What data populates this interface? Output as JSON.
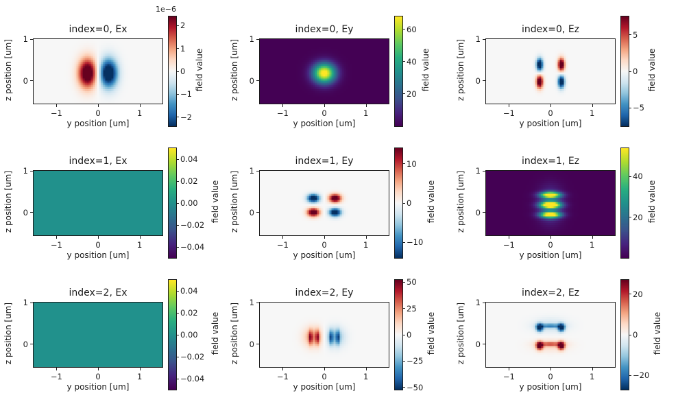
{
  "figure": {
    "background": "#ffffff",
    "text_color": "#1a1a1a",
    "xlabel": "y position [um]",
    "ylabel": "z position [um]",
    "colorbar_label": "field value"
  },
  "colormaps": {
    "viridis": [
      [
        0,
        "#440154"
      ],
      [
        0.125,
        "#46237e"
      ],
      [
        0.25,
        "#3b528b"
      ],
      [
        0.375,
        "#2c728e"
      ],
      [
        0.5,
        "#21918c"
      ],
      [
        0.625,
        "#28ae80"
      ],
      [
        0.75,
        "#5ec962"
      ],
      [
        0.875,
        "#addc30"
      ],
      [
        1,
        "#fde725"
      ]
    ],
    "RdBu_r": [
      [
        0,
        "#053061"
      ],
      [
        0.1,
        "#2166ac"
      ],
      [
        0.2,
        "#4393c3"
      ],
      [
        0.3,
        "#92c5de"
      ],
      [
        0.4,
        "#d1e5f0"
      ],
      [
        0.5,
        "#f7f7f7"
      ],
      [
        0.6,
        "#fddbc7"
      ],
      [
        0.7,
        "#f4a582"
      ],
      [
        0.8,
        "#d6604d"
      ],
      [
        0.9,
        "#b2182b"
      ],
      [
        1,
        "#67001f"
      ]
    ]
  },
  "chart_data": [
    {
      "type": "heatmap",
      "title": "index=0, Ex",
      "cmap": "RdBu_r",
      "xlabel": "y position [um]",
      "ylabel": "z position [um]",
      "colorbar_label": "field value",
      "offset_text": "1e−6",
      "xlim": [
        -1.55,
        1.55
      ],
      "ylim": [
        -0.55,
        1.0
      ],
      "xticks": [
        {
          "v": -1,
          "label": "−1"
        },
        {
          "v": 0,
          "label": "0"
        },
        {
          "v": 1,
          "label": "1"
        }
      ],
      "yticks": [
        {
          "v": 1,
          "label": "1"
        },
        {
          "v": 0,
          "label": "0"
        }
      ],
      "vmin": -2.4,
      "vmax": 2.4,
      "cticks": [
        {
          "v": 2,
          "label": "2"
        },
        {
          "v": 1,
          "label": "1"
        },
        {
          "v": 0,
          "label": "0"
        },
        {
          "v": -1,
          "label": "−1"
        },
        {
          "v": -2,
          "label": "−2"
        }
      ],
      "base": 0,
      "pattern": "horizontal dipole: positive (red) lobe left of center, negative (blue) lobe right, at z≈0.18",
      "blobs": [
        [
          -0.25,
          0.18,
          0.15,
          0.24,
          3.2
        ],
        [
          0.25,
          0.18,
          0.15,
          0.24,
          -3.2
        ]
      ]
    },
    {
      "type": "heatmap",
      "title": "index=0, Ey",
      "cmap": "viridis",
      "xlabel": "y position [um]",
      "ylabel": "z position [um]",
      "colorbar_label": "field value",
      "offset_text": null,
      "xlim": [
        -1.55,
        1.55
      ],
      "ylim": [
        -0.55,
        1.0
      ],
      "xticks": [
        {
          "v": -1,
          "label": "−1"
        },
        {
          "v": 0,
          "label": "0"
        },
        {
          "v": 1,
          "label": "1"
        }
      ],
      "yticks": [
        {
          "v": 1,
          "label": "1"
        },
        {
          "v": 0,
          "label": "0"
        }
      ],
      "vmin": 0,
      "vmax": 68,
      "cticks": [
        {
          "v": 60,
          "label": "60"
        },
        {
          "v": 40,
          "label": "40"
        },
        {
          "v": 20,
          "label": "20"
        }
      ],
      "base": 0,
      "pattern": "single bright fundamental-mode spot centered at y=0, z≈0.18",
      "blobs": [
        [
          0,
          0.18,
          0.19,
          0.17,
          72
        ]
      ]
    },
    {
      "type": "heatmap",
      "title": "index=0, Ez",
      "cmap": "RdBu_r",
      "xlabel": "y position [um]",
      "ylabel": "z position [um]",
      "colorbar_label": "field value",
      "offset_text": null,
      "xlim": [
        -1.55,
        1.55
      ],
      "ylim": [
        -0.55,
        1.0
      ],
      "xticks": [
        {
          "v": -1,
          "label": "−1"
        },
        {
          "v": 0,
          "label": "0"
        },
        {
          "v": 1,
          "label": "1"
        }
      ],
      "yticks": [
        {
          "v": 1,
          "label": "1"
        },
        {
          "v": 0,
          "label": "0"
        }
      ],
      "vmin": -7.5,
      "vmax": 7.5,
      "cticks": [
        {
          "v": 5,
          "label": "5"
        },
        {
          "v": 0,
          "label": "0"
        },
        {
          "v": -5,
          "label": "−5"
        }
      ],
      "base": 0,
      "pattern": "quadrupole of small lobes: blue top-left, red top-right, red bottom-left, blue bottom-right",
      "blobs": [
        [
          -0.26,
          0.39,
          0.055,
          0.105,
          -10
        ],
        [
          0.26,
          0.39,
          0.055,
          0.105,
          10
        ],
        [
          -0.26,
          -0.03,
          0.055,
          0.105,
          10
        ],
        [
          0.26,
          -0.03,
          0.055,
          0.105,
          -10
        ]
      ]
    },
    {
      "type": "heatmap",
      "title": "index=1, Ex",
      "cmap": "viridis",
      "xlabel": "y position [um]",
      "ylabel": "z position [um]",
      "colorbar_label": "field value",
      "offset_text": null,
      "xlim": [
        -1.55,
        1.55
      ],
      "ylim": [
        -0.55,
        1.0
      ],
      "xticks": [
        {
          "v": -1,
          "label": "−1"
        },
        {
          "v": 0,
          "label": "0"
        },
        {
          "v": 1,
          "label": "1"
        }
      ],
      "yticks": [
        {
          "v": 1,
          "label": "1"
        },
        {
          "v": 0,
          "label": "0"
        }
      ],
      "vmin": -0.05,
      "vmax": 0.05,
      "cticks": [
        {
          "v": 0.04,
          "label": "0.04"
        },
        {
          "v": 0.02,
          "label": "0.02"
        },
        {
          "v": 0,
          "label": "0.00"
        },
        {
          "v": -0.02,
          "label": "−0.02"
        },
        {
          "v": -0.04,
          "label": "−0.04"
        }
      ],
      "base": 0,
      "pattern": "uniform zero field (flat teal)",
      "blobs": []
    },
    {
      "type": "heatmap",
      "title": "index=1, Ey",
      "cmap": "RdBu_r",
      "xlabel": "y position [um]",
      "ylabel": "z position [um]",
      "colorbar_label": "field value",
      "offset_text": null,
      "xlim": [
        -1.55,
        1.55
      ],
      "ylim": [
        -0.55,
        1.0
      ],
      "xticks": [
        {
          "v": -1,
          "label": "−1"
        },
        {
          "v": 0,
          "label": "0"
        },
        {
          "v": 1,
          "label": "1"
        }
      ],
      "yticks": [
        {
          "v": 1,
          "label": "1"
        },
        {
          "v": 0,
          "label": "0"
        }
      ],
      "vmin": -14,
      "vmax": 14,
      "cticks": [
        {
          "v": 10,
          "label": "10"
        },
        {
          "v": 0,
          "label": "0"
        },
        {
          "v": -10,
          "label": "−10"
        }
      ],
      "base": 0,
      "pattern": "quadrupole of oval lobes: blue top-left, red top-right, red bottom-left, blue bottom-right",
      "blobs": [
        [
          -0.26,
          0.34,
          0.1,
          0.07,
          -18
        ],
        [
          0.26,
          0.34,
          0.1,
          0.07,
          18
        ],
        [
          -0.26,
          0,
          0.1,
          0.07,
          18
        ],
        [
          0.26,
          0,
          0.1,
          0.07,
          -18
        ]
      ]
    },
    {
      "type": "heatmap",
      "title": "index=1, Ez",
      "cmap": "viridis",
      "xlabel": "y position [um]",
      "ylabel": "z position [um]",
      "colorbar_label": "field value",
      "offset_text": null,
      "xlim": [
        -1.55,
        1.55
      ],
      "ylim": [
        -0.55,
        1.0
      ],
      "xticks": [
        {
          "v": -1,
          "label": "−1"
        },
        {
          "v": 0,
          "label": "0"
        },
        {
          "v": 1,
          "label": "1"
        }
      ],
      "yticks": [
        {
          "v": 1,
          "label": "1"
        },
        {
          "v": 0,
          "label": "0"
        }
      ],
      "vmin": 0,
      "vmax": 54,
      "cticks": [
        {
          "v": 40,
          "label": "40"
        },
        {
          "v": 20,
          "label": "20"
        }
      ],
      "base": 0,
      "pattern": "three stacked bright horizontal bands centered at y=0 (z≈0.42, 0.18, −0.06)",
      "blobs": [
        [
          0,
          0.42,
          0.17,
          0.05,
          58
        ],
        [
          0,
          0.18,
          0.17,
          0.055,
          64
        ],
        [
          0,
          -0.06,
          0.17,
          0.05,
          60
        ],
        [
          0,
          0.18,
          0.2,
          0.28,
          16
        ]
      ]
    },
    {
      "type": "heatmap",
      "title": "index=2, Ex",
      "cmap": "viridis",
      "xlabel": "y position [um]",
      "ylabel": "z position [um]",
      "colorbar_label": "field value",
      "offset_text": null,
      "xlim": [
        -1.55,
        1.55
      ],
      "ylim": [
        -0.55,
        1.0
      ],
      "xticks": [
        {
          "v": -1,
          "label": "−1"
        },
        {
          "v": 0,
          "label": "0"
        },
        {
          "v": 1,
          "label": "1"
        }
      ],
      "yticks": [
        {
          "v": 1,
          "label": "1"
        },
        {
          "v": 0,
          "label": "0"
        }
      ],
      "vmin": -0.05,
      "vmax": 0.05,
      "cticks": [
        {
          "v": 0.04,
          "label": "0.04"
        },
        {
          "v": 0.02,
          "label": "0.02"
        },
        {
          "v": 0,
          "label": "0.00"
        },
        {
          "v": -0.02,
          "label": "−0.02"
        },
        {
          "v": -0.04,
          "label": "−0.04"
        }
      ],
      "base": 0,
      "pattern": "uniform zero field (flat teal)",
      "blobs": []
    },
    {
      "type": "heatmap",
      "title": "index=2, Ey",
      "cmap": "RdBu_r",
      "xlabel": "y position [um]",
      "ylabel": "z position [um]",
      "colorbar_label": "field value",
      "offset_text": null,
      "xlim": [
        -1.55,
        1.55
      ],
      "ylim": [
        -0.55,
        1.0
      ],
      "xticks": [
        {
          "v": -1,
          "label": "−1"
        },
        {
          "v": 0,
          "label": "0"
        },
        {
          "v": 1,
          "label": "1"
        }
      ],
      "yticks": [
        {
          "v": 1,
          "label": "1"
        },
        {
          "v": 0,
          "label": "0"
        }
      ],
      "vmin": -52,
      "vmax": 52,
      "cticks": [
        {
          "v": 50,
          "label": "50"
        },
        {
          "v": 25,
          "label": "25"
        },
        {
          "v": 0,
          "label": "0"
        },
        {
          "v": -25,
          "label": "−25"
        },
        {
          "v": -50,
          "label": "−50"
        }
      ],
      "base": 0,
      "pattern": "red lobe left / blue lobe right, each with two dark vertical stripes, at z≈0.17",
      "blobs": [
        [
          -0.25,
          0.17,
          0.16,
          0.16,
          26
        ],
        [
          -0.33,
          0.16,
          0.03,
          0.12,
          30
        ],
        [
          -0.16,
          0.16,
          0.03,
          0.12,
          30
        ],
        [
          0.25,
          0.17,
          0.16,
          0.16,
          -26
        ],
        [
          0.33,
          0.16,
          0.03,
          0.12,
          -30
        ],
        [
          0.16,
          0.16,
          0.03,
          0.12,
          -30
        ]
      ]
    },
    {
      "type": "heatmap",
      "title": "index=2, Ez",
      "cmap": "RdBu_r",
      "xlabel": "y position [um]",
      "ylabel": "z position [um]",
      "colorbar_label": "field value",
      "offset_text": null,
      "xlim": [
        -1.55,
        1.55
      ],
      "ylim": [
        -0.55,
        1.0
      ],
      "xticks": [
        {
          "v": -1,
          "label": "−1"
        },
        {
          "v": 0,
          "label": "0"
        },
        {
          "v": 1,
          "label": "1"
        }
      ],
      "yticks": [
        {
          "v": 1,
          "label": "1"
        },
        {
          "v": 0,
          "label": "0"
        }
      ],
      "vmin": -27,
      "vmax": 27,
      "cticks": [
        {
          "v": 20,
          "label": "20"
        },
        {
          "v": 0,
          "label": "0"
        },
        {
          "v": -20,
          "label": "−20"
        }
      ],
      "base": 0,
      "pattern": "blue pair of lobes joined by band at z≈0.40 (top), red pair joined by band at z≈−0.04 (bottom)",
      "blobs": [
        [
          -0.26,
          0.4,
          0.055,
          0.065,
          -34
        ],
        [
          0.26,
          0.4,
          0.055,
          0.065,
          -34
        ],
        [
          0,
          0.44,
          0.19,
          0.035,
          -14
        ],
        [
          0,
          0.45,
          0.28,
          0.12,
          -6
        ],
        [
          -0.26,
          -0.04,
          0.055,
          0.065,
          34
        ],
        [
          0.26,
          -0.04,
          0.055,
          0.065,
          34
        ],
        [
          0,
          0,
          0.19,
          0.035,
          14
        ],
        [
          0,
          -0.03,
          0.28,
          0.1,
          6
        ]
      ]
    }
  ]
}
